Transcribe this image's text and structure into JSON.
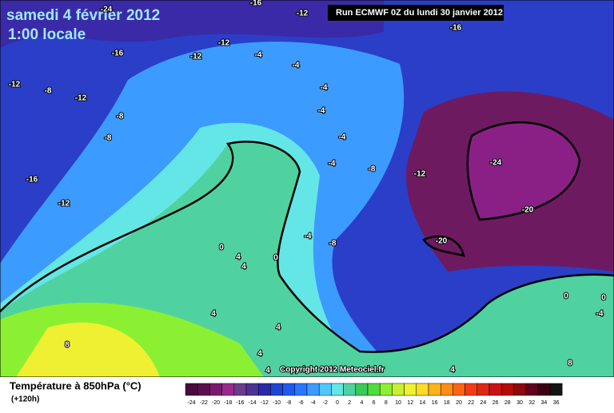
{
  "header": {
    "title": "samedi 4 février 2012",
    "time": "1:00 locale",
    "run": "Run ECMWF 0Z du lundi 30 janvier 2012"
  },
  "map": {
    "copyright": "Copyright 2012 Meteociel.fr",
    "contour_labels": [
      -24,
      -16,
      -12,
      -16,
      -12,
      -12,
      -16,
      -12,
      -8,
      -12,
      -8,
      -8,
      -4,
      -4,
      -4,
      -4,
      -4,
      -4,
      -8,
      -12,
      -24,
      -20,
      -20,
      -16,
      -12,
      -4,
      -8,
      0,
      4,
      4,
      0,
      4,
      4,
      4,
      4,
      8,
      4,
      8,
      0,
      -4,
      0
    ]
  },
  "legend": {
    "title": "Température à 850hPa (°C)",
    "subtitle": "(+120h)",
    "ticks": [
      -24,
      -22,
      -20,
      -18,
      -16,
      -14,
      -12,
      -10,
      -8,
      -6,
      -4,
      -2,
      0,
      2,
      4,
      6,
      8,
      10,
      12,
      14,
      16,
      18,
      20,
      22,
      24,
      26,
      28,
      30,
      32,
      34,
      36
    ],
    "colors": [
      "#4b0a3b",
      "#5a0f4f",
      "#7a1a6e",
      "#9b2a8f",
      "#6a3c8c",
      "#4a3296",
      "#2a2aa8",
      "#1e46d2",
      "#1e5af0",
      "#2878ff",
      "#3c9bff",
      "#50c8ff",
      "#64e6e6",
      "#50d2a0",
      "#3cc85a",
      "#50dc3c",
      "#8cf032",
      "#c8f032",
      "#f0f032",
      "#ffdc28",
      "#ffb41e",
      "#ff8c14",
      "#ff6414",
      "#f03c14",
      "#dc2814",
      "#c81414",
      "#b40a0a",
      "#8c0a0a",
      "#64001e",
      "#3c0014",
      "#141414"
    ]
  }
}
